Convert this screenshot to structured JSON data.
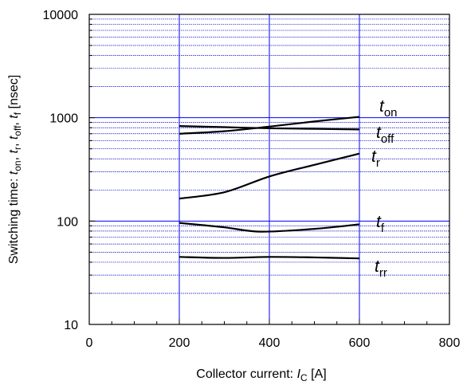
{
  "chart_data": {
    "type": "line",
    "title": "",
    "xlabel": {
      "prefix": "Collector current: ",
      "italic": "I",
      "sub": "C",
      "suffix": " [A]"
    },
    "ylabel": {
      "parts": [
        {
          "t": "Switching time: "
        },
        {
          "t": "t",
          "i": true
        },
        {
          "t": "on",
          "sub": true
        },
        {
          "t": ", "
        },
        {
          "t": "t",
          "i": true
        },
        {
          "t": "r",
          "sub": true
        },
        {
          "t": ", "
        },
        {
          "t": "t",
          "i": true
        },
        {
          "t": "off",
          "sub": true
        },
        {
          "t": ", "
        },
        {
          "t": "t",
          "i": true
        },
        {
          "t": "f",
          "sub": true
        },
        {
          "t": " [nsec]"
        }
      ]
    },
    "xlim": [
      0,
      800
    ],
    "ylim": [
      10,
      10000
    ],
    "yscale": "log",
    "x_ticks": [
      0,
      200,
      400,
      600,
      800
    ],
    "x_tick_labels": [
      "0",
      "200",
      "400",
      "600",
      "800"
    ],
    "y_ticks": [
      10,
      100,
      1000,
      10000
    ],
    "y_tick_labels": [
      "10",
      "100",
      "1000",
      "10000"
    ],
    "grid": true,
    "colors": {
      "series": "#000000",
      "major_grid": "#0000ff",
      "minor_grid": "#0000cc",
      "frame": "#000000"
    },
    "series": [
      {
        "name": "ton",
        "sym": "t",
        "sub": "on",
        "x": [
          200,
          300,
          400,
          500,
          600
        ],
        "y": [
          700,
          740,
          820,
          920,
          1020
        ]
      },
      {
        "name": "toff",
        "sym": "t",
        "sub": "off",
        "x": [
          200,
          300,
          400,
          500,
          600
        ],
        "y": [
          830,
          810,
          790,
          780,
          770
        ]
      },
      {
        "name": "tr",
        "sym": "t",
        "sub": "r",
        "x": [
          200,
          300,
          400,
          500,
          600
        ],
        "y": [
          165,
          190,
          270,
          350,
          450
        ]
      },
      {
        "name": "tf",
        "sym": "t",
        "sub": "f",
        "x": [
          200,
          300,
          380,
          500,
          600
        ],
        "y": [
          96,
          87,
          79,
          84,
          93
        ]
      },
      {
        "name": "trr",
        "sym": "t",
        "sub": "rr",
        "x": [
          200,
          300,
          400,
          500,
          600
        ],
        "y": [
          45,
          44,
          45,
          44.5,
          43.5
        ]
      }
    ]
  }
}
